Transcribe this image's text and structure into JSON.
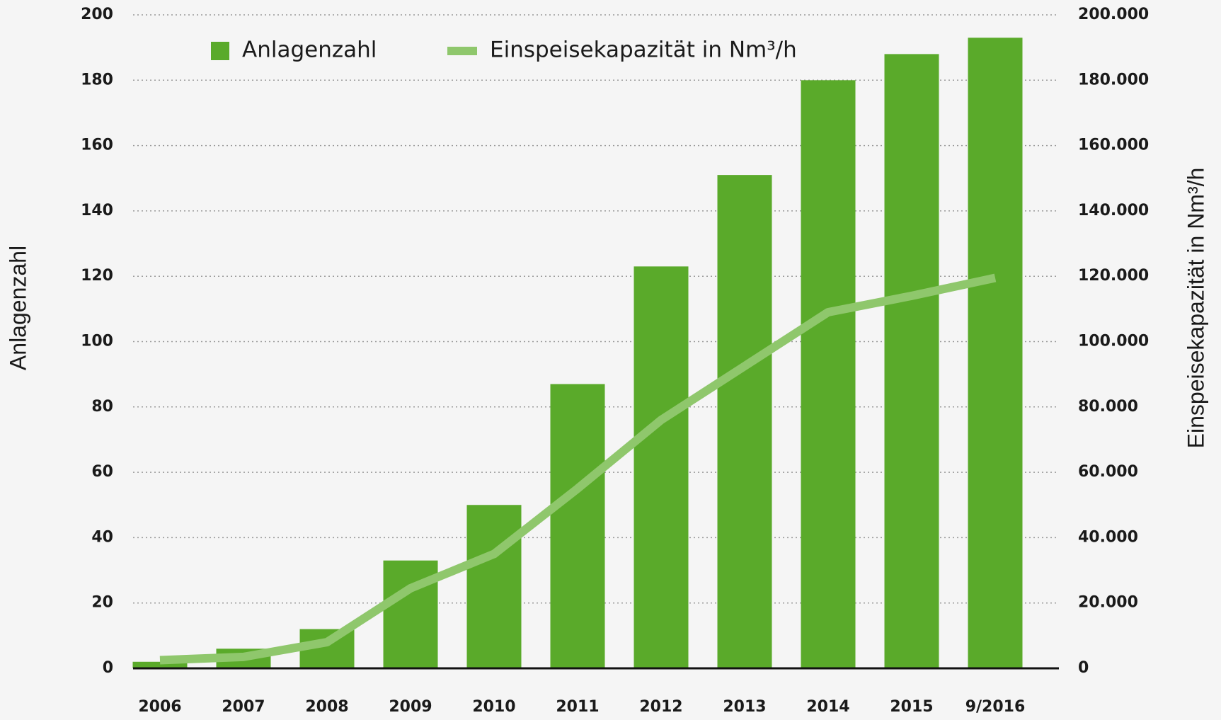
{
  "chart_data": {
    "type": "bar",
    "categories": [
      "2006",
      "2007",
      "2008",
      "2009",
      "2010",
      "2011",
      "2012",
      "2013",
      "2014",
      "2015",
      "9/2016"
    ],
    "series": [
      {
        "name": "Anlagenzahl",
        "type": "bar",
        "color": "#5aaa2a",
        "values": [
          2,
          6,
          12,
          33,
          50,
          87,
          123,
          151,
          180,
          188,
          193
        ]
      },
      {
        "name": "Einspeisekapazität in Nm³/h",
        "type": "line",
        "axis": "y2",
        "color": "#8fc76c",
        "values": [
          2500,
          3500,
          8000,
          24500,
          35000,
          55000,
          76000,
          92500,
          109000,
          114000,
          119500
        ]
      }
    ],
    "ylabel": "Anlagenzahl",
    "y2label": "Einspeisekapazität in Nm³/h",
    "ylim": [
      0,
      200
    ],
    "yticks": [
      0,
      20,
      40,
      60,
      80,
      100,
      120,
      140,
      160,
      180,
      200
    ],
    "y2lim": [
      0,
      200000
    ],
    "y2ticks": [
      0,
      {
        "value": 20000,
        "label": "20.000"
      },
      {
        "value": 40000,
        "label": "40.000"
      },
      {
        "value": 60000,
        "label": "60.000"
      },
      {
        "value": 80000,
        "label": "80.000"
      },
      {
        "value": 100000,
        "label": "100.000"
      },
      {
        "value": 120000,
        "label": "120.000"
      },
      {
        "value": 140000,
        "label": "140.000"
      },
      {
        "value": 160000,
        "label": "160.000"
      },
      {
        "value": 180000,
        "label": "180.000"
      },
      {
        "value": 200000,
        "label": "200.000"
      }
    ],
    "grid": true,
    "legend": "top"
  }
}
